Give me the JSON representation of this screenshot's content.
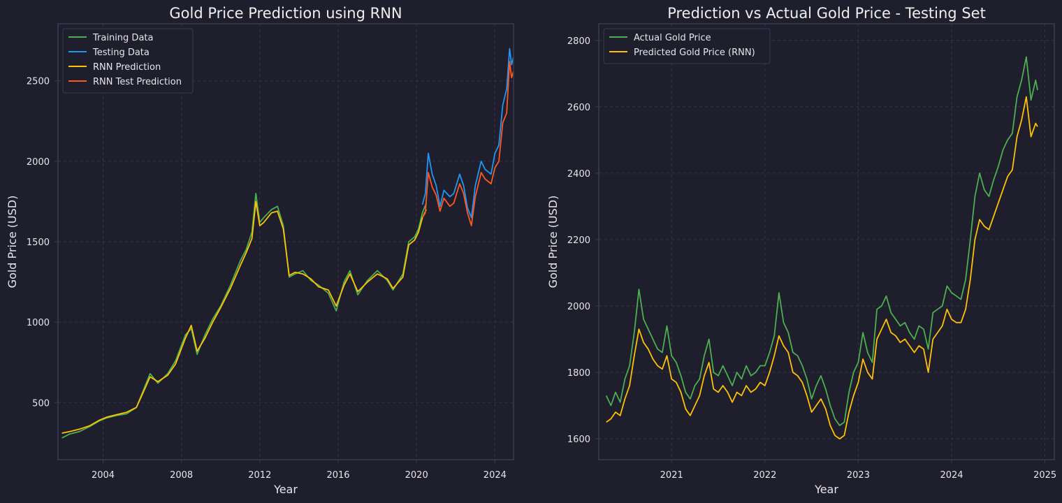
{
  "colors": {
    "figure_bg": "#1e1e2d",
    "axes_bg": "#1e1e2d",
    "spine": "#3b3b52",
    "grid": "#34344a",
    "text": "#e6e6ea"
  },
  "chart_data": [
    {
      "type": "line",
      "title": "Gold Price Prediction using RNN",
      "xlabel": "Year",
      "ylabel": "Gold Price (USD)",
      "xlim": [
        2001.7,
        2024.95
      ],
      "ylim": [
        145,
        2855
      ],
      "xticks": [
        2004,
        2008,
        2012,
        2016,
        2020,
        2024
      ],
      "yticks": [
        500,
        1000,
        1500,
        2000,
        2500
      ],
      "grid": true,
      "legend": "top-left",
      "series": [
        {
          "name": "Training Data",
          "color": "#4caf50",
          "x": [
            2001.9,
            2002.3,
            2002.8,
            2003.3,
            2003.8,
            2004.2,
            2004.7,
            2005.2,
            2005.7,
            2006.0,
            2006.4,
            2006.8,
            2007.3,
            2007.7,
            2008.2,
            2008.5,
            2008.8,
            2009.2,
            2009.6,
            2010.0,
            2010.5,
            2011.0,
            2011.3,
            2011.6,
            2011.8,
            2012.0,
            2012.2,
            2012.6,
            2012.9,
            2013.2,
            2013.5,
            2013.8,
            2014.2,
            2014.6,
            2015.0,
            2015.5,
            2015.9,
            2016.3,
            2016.6,
            2017.0,
            2017.5,
            2018.0,
            2018.5,
            2018.8,
            2019.3,
            2019.6,
            2019.9,
            2020.1,
            2020.3,
            2020.5
          ],
          "y": [
            280,
            305,
            320,
            350,
            385,
            405,
            420,
            430,
            470,
            560,
            680,
            620,
            680,
            760,
            920,
            960,
            800,
            920,
            1020,
            1100,
            1230,
            1380,
            1450,
            1560,
            1800,
            1620,
            1650,
            1700,
            1720,
            1600,
            1280,
            1300,
            1320,
            1260,
            1230,
            1180,
            1070,
            1250,
            1320,
            1170,
            1260,
            1320,
            1260,
            1200,
            1300,
            1500,
            1530,
            1580,
            1680,
            1740
          ]
        },
        {
          "name": "Testing Data",
          "color": "#2196f3",
          "x": [
            2020.3,
            2020.45,
            2020.6,
            2020.8,
            2021.0,
            2021.2,
            2021.4,
            2021.7,
            2021.9,
            2022.2,
            2022.4,
            2022.6,
            2022.8,
            2023.0,
            2023.3,
            2023.5,
            2023.8,
            2024.0,
            2024.2,
            2024.4,
            2024.6,
            2024.75,
            2024.85,
            2024.95
          ],
          "y": [
            1730,
            1800,
            2050,
            1920,
            1850,
            1720,
            1820,
            1780,
            1800,
            1920,
            1850,
            1710,
            1650,
            1850,
            2000,
            1950,
            1920,
            2050,
            2100,
            2350,
            2450,
            2700,
            2600,
            2650
          ]
        },
        {
          "name": "RNN Prediction",
          "color": "#ffc107",
          "x": [
            2001.9,
            2002.3,
            2002.8,
            2003.3,
            2003.8,
            2004.2,
            2004.7,
            2005.2,
            2005.7,
            2006.0,
            2006.4,
            2006.8,
            2007.3,
            2007.7,
            2008.2,
            2008.5,
            2008.8,
            2009.2,
            2009.6,
            2010.0,
            2010.5,
            2011.0,
            2011.3,
            2011.6,
            2011.8,
            2012.0,
            2012.2,
            2012.6,
            2012.9,
            2013.2,
            2013.5,
            2013.8,
            2014.2,
            2014.6,
            2015.0,
            2015.5,
            2015.9,
            2016.3,
            2016.6,
            2017.0,
            2017.5,
            2018.0,
            2018.5,
            2018.8,
            2019.3,
            2019.6,
            2019.9,
            2020.1,
            2020.3,
            2020.5
          ],
          "y": [
            310,
            320,
            335,
            355,
            390,
            410,
            425,
            440,
            470,
            550,
            660,
            630,
            670,
            740,
            900,
            980,
            820,
            900,
            1000,
            1090,
            1210,
            1350,
            1430,
            1520,
            1750,
            1600,
            1620,
            1680,
            1690,
            1580,
            1290,
            1310,
            1300,
            1270,
            1220,
            1200,
            1100,
            1230,
            1300,
            1190,
            1250,
            1300,
            1270,
            1210,
            1280,
            1480,
            1510,
            1560,
            1650,
            1700
          ]
        },
        {
          "name": "RNN Test Prediction",
          "color": "#ff5722",
          "x": [
            2020.3,
            2020.45,
            2020.6,
            2020.8,
            2021.0,
            2021.2,
            2021.4,
            2021.7,
            2021.9,
            2022.2,
            2022.4,
            2022.6,
            2022.8,
            2023.0,
            2023.3,
            2023.5,
            2023.8,
            2024.0,
            2024.2,
            2024.4,
            2024.6,
            2024.75,
            2024.85,
            2024.95
          ],
          "y": [
            1650,
            1680,
            1930,
            1840,
            1790,
            1690,
            1770,
            1720,
            1740,
            1860,
            1800,
            1680,
            1600,
            1780,
            1930,
            1890,
            1860,
            1960,
            2000,
            2240,
            2300,
            2620,
            2520,
            2560
          ]
        }
      ]
    },
    {
      "type": "line",
      "title": "Prediction vs Actual Gold Price - Testing Set",
      "xlabel": "Year",
      "ylabel": "Gold Price (USD)",
      "xlim": [
        2020.22,
        2025.1
      ],
      "ylim": [
        1537,
        2850
      ],
      "xticks": [
        2021,
        2022,
        2023,
        2024,
        2025
      ],
      "yticks": [
        1600,
        1800,
        2000,
        2200,
        2400,
        2600,
        2800
      ],
      "grid": true,
      "legend": "top-left",
      "series": [
        {
          "name": "Actual Gold Price",
          "color": "#4caf50",
          "x": [
            2020.3,
            2020.35,
            2020.4,
            2020.45,
            2020.5,
            2020.55,
            2020.6,
            2020.65,
            2020.7,
            2020.75,
            2020.8,
            2020.85,
            2020.9,
            2020.95,
            2021.0,
            2021.05,
            2021.1,
            2021.15,
            2021.2,
            2021.25,
            2021.3,
            2021.35,
            2021.4,
            2021.45,
            2021.5,
            2021.55,
            2021.6,
            2021.65,
            2021.7,
            2021.75,
            2021.8,
            2021.85,
            2021.9,
            2021.95,
            2022.0,
            2022.05,
            2022.1,
            2022.15,
            2022.2,
            2022.25,
            2022.3,
            2022.35,
            2022.4,
            2022.45,
            2022.5,
            2022.55,
            2022.6,
            2022.65,
            2022.7,
            2022.75,
            2022.8,
            2022.85,
            2022.9,
            2022.95,
            2023.0,
            2023.05,
            2023.1,
            2023.15,
            2023.2,
            2023.25,
            2023.3,
            2023.35,
            2023.4,
            2023.45,
            2023.5,
            2023.55,
            2023.6,
            2023.65,
            2023.7,
            2023.75,
            2023.8,
            2023.85,
            2023.9,
            2023.95,
            2024.0,
            2024.05,
            2024.1,
            2024.15,
            2024.2,
            2024.25,
            2024.3,
            2024.35,
            2024.4,
            2024.45,
            2024.5,
            2024.55,
            2024.6,
            2024.65,
            2024.7,
            2024.75,
            2024.8,
            2024.85,
            2024.9,
            2024.92
          ],
          "y": [
            1730,
            1700,
            1740,
            1710,
            1780,
            1820,
            1920,
            2050,
            1960,
            1930,
            1900,
            1870,
            1860,
            1940,
            1850,
            1830,
            1790,
            1740,
            1720,
            1760,
            1780,
            1850,
            1900,
            1800,
            1790,
            1820,
            1790,
            1760,
            1800,
            1780,
            1820,
            1790,
            1800,
            1820,
            1820,
            1860,
            1910,
            2040,
            1950,
            1920,
            1860,
            1850,
            1820,
            1780,
            1720,
            1760,
            1790,
            1750,
            1700,
            1660,
            1640,
            1650,
            1740,
            1800,
            1830,
            1920,
            1860,
            1830,
            1990,
            2000,
            2030,
            1980,
            1960,
            1940,
            1950,
            1920,
            1900,
            1940,
            1930,
            1870,
            1980,
            1990,
            2000,
            2060,
            2040,
            2030,
            2020,
            2080,
            2200,
            2330,
            2400,
            2350,
            2330,
            2380,
            2420,
            2470,
            2500,
            2520,
            2630,
            2680,
            2750,
            2620,
            2680,
            2650
          ]
        },
        {
          "name": "Predicted Gold Price (RNN)",
          "color": "#ffc107",
          "x": [
            2020.3,
            2020.35,
            2020.4,
            2020.45,
            2020.5,
            2020.55,
            2020.6,
            2020.65,
            2020.7,
            2020.75,
            2020.8,
            2020.85,
            2020.9,
            2020.95,
            2021.0,
            2021.05,
            2021.1,
            2021.15,
            2021.2,
            2021.25,
            2021.3,
            2021.35,
            2021.4,
            2021.45,
            2021.5,
            2021.55,
            2021.6,
            2021.65,
            2021.7,
            2021.75,
            2021.8,
            2021.85,
            2021.9,
            2021.95,
            2022.0,
            2022.05,
            2022.1,
            2022.15,
            2022.2,
            2022.25,
            2022.3,
            2022.35,
            2022.4,
            2022.45,
            2022.5,
            2022.55,
            2022.6,
            2022.65,
            2022.7,
            2022.75,
            2022.8,
            2022.85,
            2022.9,
            2022.95,
            2023.0,
            2023.05,
            2023.1,
            2023.15,
            2023.2,
            2023.25,
            2023.3,
            2023.35,
            2023.4,
            2023.45,
            2023.5,
            2023.55,
            2023.6,
            2023.65,
            2023.7,
            2023.75,
            2023.8,
            2023.85,
            2023.9,
            2023.95,
            2024.0,
            2024.05,
            2024.1,
            2024.15,
            2024.2,
            2024.25,
            2024.3,
            2024.35,
            2024.4,
            2024.45,
            2024.5,
            2024.55,
            2024.6,
            2024.65,
            2024.7,
            2024.75,
            2024.8,
            2024.85,
            2024.9,
            2024.92
          ],
          "y": [
            1650,
            1660,
            1680,
            1670,
            1720,
            1760,
            1850,
            1930,
            1890,
            1870,
            1840,
            1820,
            1810,
            1850,
            1780,
            1770,
            1740,
            1690,
            1670,
            1700,
            1730,
            1790,
            1830,
            1750,
            1740,
            1760,
            1740,
            1710,
            1740,
            1730,
            1760,
            1740,
            1750,
            1770,
            1760,
            1800,
            1850,
            1910,
            1880,
            1860,
            1800,
            1790,
            1770,
            1730,
            1680,
            1700,
            1720,
            1690,
            1640,
            1610,
            1600,
            1610,
            1680,
            1730,
            1770,
            1840,
            1800,
            1780,
            1900,
            1930,
            1960,
            1920,
            1910,
            1890,
            1900,
            1880,
            1860,
            1880,
            1870,
            1800,
            1900,
            1920,
            1940,
            1990,
            1960,
            1950,
            1950,
            1990,
            2080,
            2200,
            2260,
            2240,
            2230,
            2270,
            2310,
            2350,
            2390,
            2410,
            2510,
            2560,
            2630,
            2510,
            2550,
            2540
          ]
        }
      ]
    }
  ]
}
